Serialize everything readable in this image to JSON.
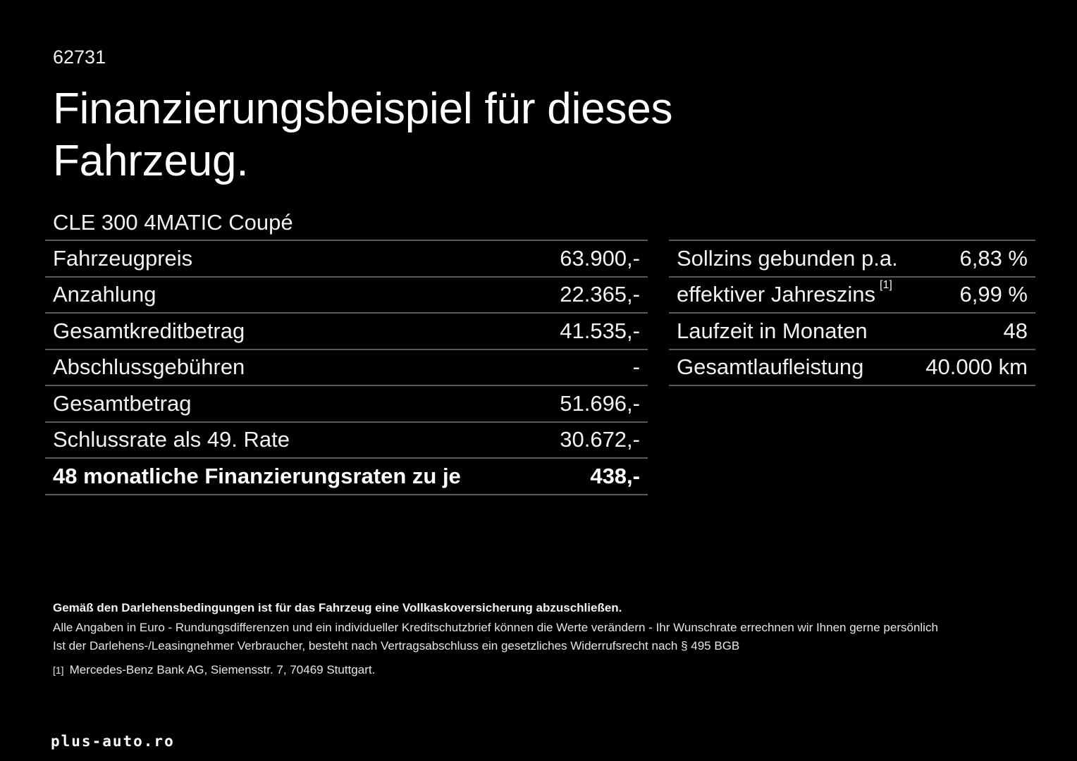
{
  "header": {
    "ref_number": "62731",
    "title": "Finanzierungsbeispiel für dieses Fahrzeug.",
    "model": "CLE 300 4MATIC Coupé"
  },
  "left_table": {
    "rows": [
      {
        "label": "Fahrzeugpreis",
        "value": "63.900,-"
      },
      {
        "label": "Anzahlung",
        "value": "22.365,-"
      },
      {
        "label": "Gesamtkreditbetrag",
        "value": "41.535,-"
      },
      {
        "label": "Abschlussgebühren",
        "value": "-"
      },
      {
        "label": "Gesamtbetrag",
        "value": "51.696,-"
      },
      {
        "label": "Schlussrate als 49. Rate",
        "value": "30.672,-"
      },
      {
        "label": "48 monatliche Finanzierungsraten zu je",
        "value": "438,-",
        "bold": true
      }
    ]
  },
  "right_table": {
    "rows": [
      {
        "label": "Sollzins gebunden p.a.",
        "value": "6,83 %"
      },
      {
        "label": "effektiver Jahreszins",
        "footnote": "[1]",
        "value": "6,99 %"
      },
      {
        "label": "Laufzeit in Monaten",
        "value": "48"
      },
      {
        "label": "Gesamtlaufleistung",
        "value": "40.000 km"
      }
    ]
  },
  "footer": {
    "insurance_note": "Gemäß den Darlehensbedingungen ist für das Fahrzeug eine Vollkaskoversicherung abzuschließen.",
    "note_1": "Alle Angaben in Euro - Rundungsdifferenzen und ein individueller Kreditschutzbrief können die Werte verändern - Ihr Wunschrate errechnen wir Ihnen gerne persönlich",
    "note_2": "Ist der Darlehens-/Leasingnehmer Verbraucher, besteht nach Vertragsabschluss ein gesetzliches Widerrufsrecht nach § 495 BGB",
    "footnote_mark": "[1]",
    "footnote_text": "Mercedes-Benz Bank AG, Siemensstr. 7, 70469 Stuttgart."
  },
  "watermark": "plus-auto.ro",
  "colors": {
    "background": "#000000",
    "text": "#f2f2f2",
    "divider": "#5a5a5a"
  }
}
